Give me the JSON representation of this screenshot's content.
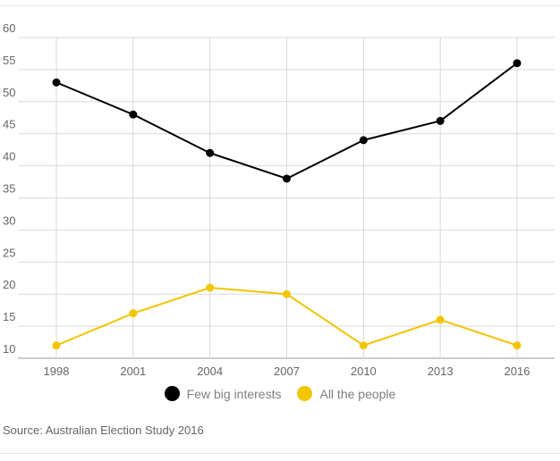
{
  "chart_data": {
    "type": "line",
    "x": [
      "1998",
      "2001",
      "2004",
      "2007",
      "2010",
      "2013",
      "2016"
    ],
    "series": [
      {
        "name": "Few big interests",
        "values": [
          53,
          48,
          42,
          38,
          44,
          47,
          56
        ],
        "color": "#000000"
      },
      {
        "name": "All the people",
        "values": [
          12,
          17,
          21,
          20,
          12,
          16,
          12
        ],
        "color": "#f2c500"
      }
    ],
    "ylim": [
      10,
      60
    ],
    "yticks": [
      10,
      15,
      20,
      25,
      30,
      35,
      40,
      45,
      50,
      55,
      60
    ],
    "grid": true,
    "legend_position": "bottom-center",
    "source": "Source: Australian Election Study 2016"
  }
}
